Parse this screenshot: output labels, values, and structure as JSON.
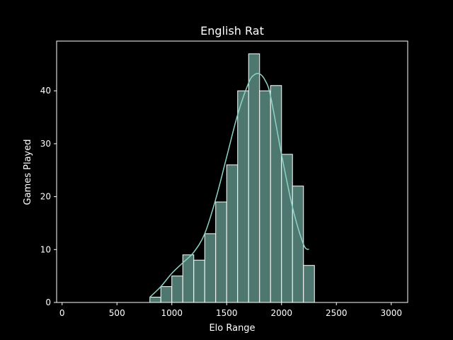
{
  "chart_data": {
    "type": "bar",
    "title": "English Rat",
    "xlabel": "Elo Range",
    "ylabel": "Games Played",
    "xlim": [
      -50,
      3150
    ],
    "ylim": [
      0,
      49.4
    ],
    "xticks": [
      0,
      500,
      1000,
      1500,
      2000,
      2500,
      3000
    ],
    "yticks": [
      0,
      10,
      20,
      30,
      40
    ],
    "grid": false,
    "bin_width": 100,
    "bins": [
      {
        "x0": 800,
        "x1": 900,
        "count": 1
      },
      {
        "x0": 900,
        "x1": 1000,
        "count": 3
      },
      {
        "x0": 1000,
        "x1": 1100,
        "count": 5
      },
      {
        "x0": 1100,
        "x1": 1200,
        "count": 9
      },
      {
        "x0": 1200,
        "x1": 1300,
        "count": 8
      },
      {
        "x0": 1300,
        "x1": 1400,
        "count": 13
      },
      {
        "x0": 1400,
        "x1": 1500,
        "count": 19
      },
      {
        "x0": 1500,
        "x1": 1600,
        "count": 26
      },
      {
        "x0": 1600,
        "x1": 1700,
        "count": 40
      },
      {
        "x0": 1700,
        "x1": 1800,
        "count": 47
      },
      {
        "x0": 1800,
        "x1": 1900,
        "count": 40
      },
      {
        "x0": 1900,
        "x1": 2000,
        "count": 41
      },
      {
        "x0": 2000,
        "x1": 2100,
        "count": 28
      },
      {
        "x0": 2100,
        "x1": 2200,
        "count": 22
      },
      {
        "x0": 2200,
        "x1": 2300,
        "count": 7
      }
    ],
    "kde": {
      "x": [
        800,
        900,
        1000,
        1100,
        1200,
        1300,
        1400,
        1500,
        1600,
        1700,
        1750,
        1800,
        1850,
        1900,
        2000,
        2100,
        2200,
        2250
      ],
      "y": [
        1,
        3,
        5.5,
        7.5,
        9.5,
        13,
        19.5,
        27.5,
        35.5,
        41.5,
        43,
        43.2,
        42,
        39,
        28,
        18,
        11,
        10
      ]
    },
    "colors": {
      "bar_fill": "#4e786f",
      "bar_edge": "#ffffff",
      "kde_line": "#8dd3c7",
      "axes": "#ffffff",
      "background": "#000000"
    }
  }
}
